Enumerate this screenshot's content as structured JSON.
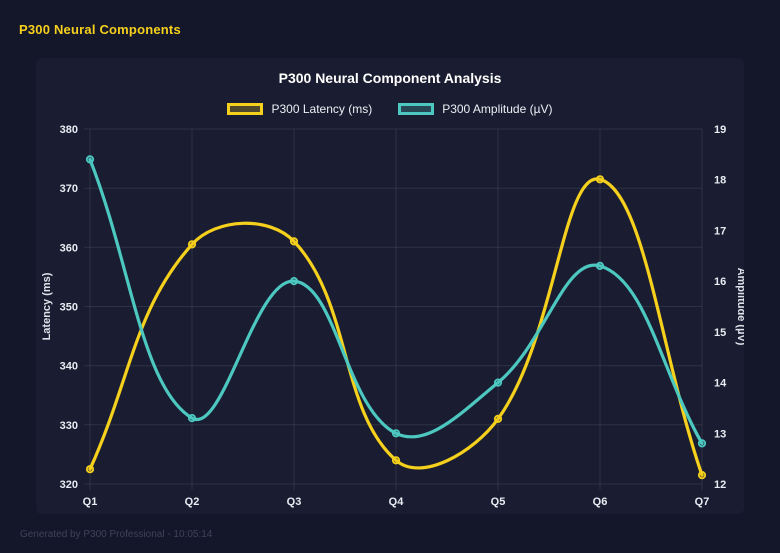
{
  "app": {
    "header_title": "P300 Neural Components",
    "footer_text": "Generated by P300 Professional - 10:05:14"
  },
  "colors": {
    "background": "#14172a",
    "panel": "#1a1d31",
    "header_text": "#f5d01c",
    "latency_line": "#f5d01c",
    "amplitude_line": "#4cc8c0",
    "grid": "rgba(255,255,255,0.09)",
    "tick_text": "#e9ebf2",
    "axis_title_text": "#dfe2ea",
    "title_text": "#ffffff",
    "footer_text": "#3e4357"
  },
  "chart_data": {
    "type": "line",
    "title": "P300 Neural Component Analysis",
    "categories": [
      "Q1",
      "Q2",
      "Q3",
      "Q4",
      "Q5",
      "Q6",
      "Q7"
    ],
    "series": [
      {
        "name": "P300 Latency (ms)",
        "axis": "left",
        "color": "#f5d01c",
        "values": [
          322.5,
          360.5,
          361,
          324,
          331,
          371.5,
          321.5
        ]
      },
      {
        "name": "P300 Amplitude (µV)",
        "axis": "right",
        "color": "#4cc8c0",
        "values": [
          18.4,
          13.3,
          16,
          13,
          14,
          16.3,
          12.8
        ]
      }
    ],
    "left_axis": {
      "label": "Latency (ms)",
      "min": 320,
      "max": 380,
      "ticks": [
        380,
        370,
        360,
        350,
        340,
        330,
        320
      ]
    },
    "right_axis": {
      "label": "Amplitude (µV)",
      "min": 12,
      "max": 19,
      "ticks": [
        19,
        18,
        17,
        16,
        15,
        14,
        13,
        12
      ]
    },
    "grid": true,
    "legend_position": "top",
    "line_style": {
      "tension": 0.4,
      "width": 3.2,
      "point_radius": 3.2
    }
  }
}
